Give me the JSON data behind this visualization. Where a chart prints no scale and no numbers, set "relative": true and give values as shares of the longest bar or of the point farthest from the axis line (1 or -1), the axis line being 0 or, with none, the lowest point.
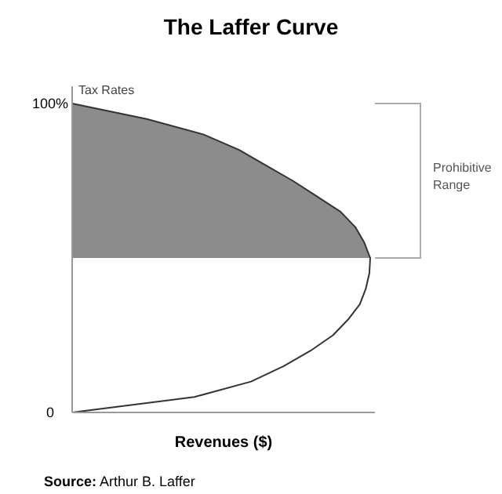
{
  "chart_data": {
    "type": "line",
    "orientation": "horizontal",
    "title": "The Laffer Curve",
    "xlabel": "Revenues ($)",
    "ylabel": "Tax Rates",
    "relative": true,
    "grid": false,
    "categories": [
      "100%",
      null,
      null,
      null,
      null,
      null,
      null,
      null,
      null,
      null,
      null,
      null,
      null,
      null,
      null,
      null,
      null,
      null,
      null,
      null,
      "0"
    ],
    "series": [
      {
        "type": "area",
        "color": "#8c8c8c",
        "values": [
          0,
          0.25,
          0.44,
          0.56,
          0.65,
          0.74,
          0.82,
          0.9,
          0.95,
          0.98,
          1,
          null,
          null,
          null,
          null,
          null,
          null,
          null,
          null,
          null,
          null
        ]
      },
      {
        "color": "#333333",
        "values": [
          0,
          0.25,
          0.44,
          0.56,
          0.65,
          0.74,
          0.82,
          0.9,
          0.95,
          0.98,
          1,
          0.997,
          0.985,
          0.965,
          0.925,
          0.875,
          0.8,
          0.71,
          0.6,
          0.41,
          0
        ]
      }
    ],
    "annotations": [
      "Prohibitive Range",
      "Source: Arthur B. Laffer"
    ]
  }
}
